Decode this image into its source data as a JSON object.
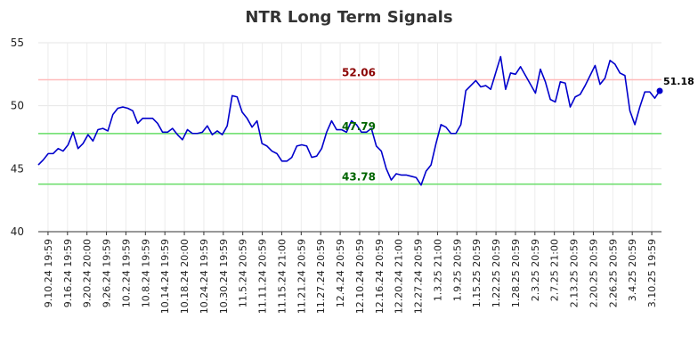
{
  "chart_data": {
    "type": "line",
    "title": "NTR Long Term Signals",
    "xlabel": "",
    "ylabel": "",
    "ylim": [
      40,
      55
    ],
    "yticks": [
      "40",
      "45",
      "50",
      "55"
    ],
    "grid": true,
    "xtick_labels": [
      "9.10.24 19:59",
      "9.16.24 19:59",
      "9.20.24 20:00",
      "9.26.24 19:59",
      "10.2.24 19:59",
      "10.8.24 19:59",
      "10.14.24 19:59",
      "10.18.24 20:00",
      "10.24.24 19:59",
      "10.30.24 19:59",
      "11.5.24 20:59",
      "11.11.24 20:59",
      "11.15.24 21:00",
      "11.21.24 20:59",
      "11.27.24 20:59",
      "12.4.24 20:59",
      "12.10.24 20:59",
      "12.16.24 20:59",
      "12.20.24 21:00",
      "12.27.24 20:59",
      "1.3.25 21:00",
      "1.9.25 20:59",
      "1.15.25 20:59",
      "1.22.25 20:59",
      "1.28.25 20:59",
      "2.3.25 20:59",
      "2.7.25 21:00",
      "2.13.25 20:59",
      "2.20.25 20:59",
      "2.26.25 20:59",
      "3.4.25 20:59",
      "3.10.25 19:59"
    ],
    "series": [
      {
        "color": "#0000cc",
        "values": [
          45.3,
          45.7,
          46.2,
          46.2,
          46.6,
          46.4,
          46.9,
          47.9,
          46.6,
          47.0,
          47.7,
          47.2,
          48.1,
          48.2,
          48.0,
          49.3,
          49.8,
          49.9,
          49.8,
          49.6,
          48.6,
          49.0,
          49.0,
          49.0,
          48.6,
          47.9,
          47.9,
          48.2,
          47.7,
          47.3,
          48.1,
          47.8,
          47.8,
          47.9,
          48.4,
          47.7,
          48.0,
          47.7,
          48.4,
          50.8,
          50.7,
          49.5,
          49.0,
          48.3,
          48.8,
          47.0,
          46.8,
          46.4,
          46.2,
          45.6,
          45.6,
          45.9,
          46.8,
          46.9,
          46.8,
          45.9,
          46.0,
          46.6,
          47.9,
          48.8,
          48.1,
          48.1,
          47.9,
          48.8,
          48.5,
          47.9,
          47.9,
          48.2,
          46.8,
          46.4,
          45.0,
          44.1,
          44.6,
          44.5,
          44.5,
          44.4,
          44.3,
          43.7,
          44.8,
          45.3,
          47.0,
          48.5,
          48.3,
          47.8,
          47.8,
          48.5,
          51.2,
          51.6,
          52.0,
          51.5,
          51.6,
          51.3,
          52.6,
          53.9,
          51.3,
          52.6,
          52.5,
          53.1,
          52.4,
          51.7,
          51.0,
          52.9,
          51.9,
          50.5,
          50.3,
          51.9,
          51.8,
          49.9,
          50.7,
          50.9,
          51.6,
          52.4,
          53.2,
          51.7,
          52.2,
          53.6,
          53.3,
          52.6,
          52.4,
          49.6,
          48.5,
          49.9,
          51.1,
          51.1,
          50.6,
          51.18
        ]
      }
    ],
    "reference_lines": [
      {
        "value": 52.06,
        "label": "52.06",
        "line_color": "#ffbbbb",
        "label_color": "#8b0000"
      },
      {
        "value": 47.79,
        "label": "47.79",
        "line_color": "#66dd66",
        "label_color": "#006400"
      },
      {
        "value": 43.78,
        "label": "43.78",
        "line_color": "#66dd66",
        "label_color": "#006400"
      }
    ],
    "last_point": {
      "value": 51.18,
      "label": "51.18"
    }
  }
}
